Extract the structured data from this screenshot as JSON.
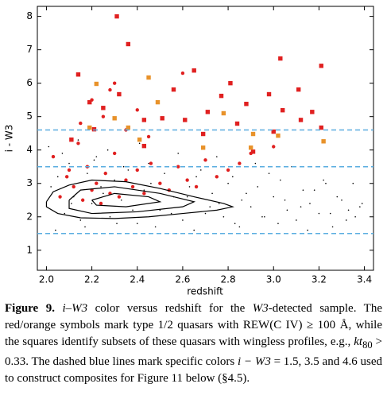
{
  "chart_data": {
    "type": "scatter",
    "xlabel": "redshift",
    "ylabel": "i - W3",
    "xlim": [
      1.96,
      3.44
    ],
    "ylim": [
      0.4,
      8.3
    ],
    "xticks": [
      {
        "value": 2,
        "label": "2.0"
      },
      2.2,
      2.4,
      2.6,
      2.8,
      {
        "value": 3,
        "label": "3.0"
      },
      3.2,
      3.4
    ],
    "yticks": [
      1,
      2,
      3,
      4,
      5,
      6,
      7,
      8
    ],
    "hlines": [
      1.5,
      3.5,
      4.6
    ],
    "hline_color": "#5aaee0",
    "series": [
      {
        "marker": "dot",
        "color": "#000000",
        "x": [
          2.02,
          2.05,
          2.08,
          2.1,
          2.12,
          2.15,
          2.18,
          2.2,
          2.22,
          2.25,
          2.28,
          2.3,
          2.33,
          2.36,
          2.4,
          2.43,
          2.46,
          2.5,
          2.53,
          2.56,
          2.6,
          2.63,
          2.66,
          2.7,
          2.73,
          2.76,
          2.8,
          2.83,
          2.86,
          2.9,
          2.93,
          2.96,
          3.0,
          3.03,
          3.06,
          3.1,
          3.13,
          3.16,
          3.2,
          3.23,
          3.26,
          3.3,
          3.33,
          3.36,
          3.39
        ],
        "values": [
          2.9,
          3.2,
          2.1,
          3.6,
          2.6,
          1.9,
          3.3,
          2.4,
          3.8,
          2.7,
          2.0,
          3.1,
          2.5,
          3.4,
          1.8,
          2.8,
          3.0,
          2.2,
          3.5,
          2.6,
          1.9,
          2.9,
          3.2,
          2.1,
          2.7,
          2.4,
          3.0,
          1.8,
          2.5,
          2.3,
          2.9,
          2.0,
          2.6,
          3.1,
          2.2,
          1.9,
          2.8,
          2.4,
          2.1,
          3.0,
          1.7,
          2.5,
          2.2,
          2.0,
          2.4
        ]
      },
      {
        "marker": "dot",
        "color": "#000000",
        "x": [
          2.01,
          2.04,
          2.07,
          2.11,
          2.14,
          2.17,
          2.21,
          2.24,
          2.27,
          2.31,
          2.34,
          2.38,
          2.41,
          2.45,
          2.48,
          2.52,
          2.55,
          2.58,
          2.62,
          2.65,
          2.68,
          2.72,
          2.75,
          2.78,
          2.82,
          2.85,
          2.88,
          2.92,
          2.95,
          2.98,
          3.02,
          3.05,
          3.08,
          3.12,
          3.15,
          3.18,
          3.22,
          3.25,
          3.28,
          3.32,
          3.35,
          3.38
        ],
        "values": [
          4.1,
          1.6,
          3.9,
          2.4,
          4.3,
          1.7,
          3.7,
          2.9,
          4.0,
          1.8,
          3.5,
          2.2,
          4.2,
          3.6,
          1.7,
          3.3,
          2.1,
          3.9,
          2.6,
          1.6,
          3.4,
          2.3,
          3.8,
          2.0,
          3.2,
          1.7,
          2.7,
          3.6,
          2.0,
          3.3,
          1.8,
          2.5,
          3.5,
          2.3,
          1.6,
          2.8,
          3.1,
          2.1,
          2.6,
          1.9,
          3.0,
          2.3
        ]
      },
      {
        "marker": "circle",
        "color": "#e02020",
        "x": [
          2.03,
          2.06,
          2.09,
          2.12,
          2.14,
          2.16,
          2.18,
          2.2,
          2.22,
          2.24,
          2.26,
          2.28,
          2.3,
          2.32,
          2.35,
          2.38,
          2.4,
          2.43,
          2.46,
          2.5,
          2.54,
          2.58,
          2.62,
          2.66,
          2.7,
          2.75,
          2.8,
          2.85,
          2.9,
          3.0,
          2.2,
          2.25,
          2.3,
          2.35,
          2.4,
          2.15,
          2.1,
          2.45,
          2.28,
          2.6
        ],
        "values": [
          3.8,
          2.6,
          3.2,
          2.9,
          4.2,
          2.5,
          3.5,
          2.8,
          3.0,
          2.4,
          3.3,
          2.7,
          3.9,
          2.6,
          3.1,
          2.9,
          3.4,
          2.7,
          3.6,
          3.0,
          2.8,
          3.5,
          3.1,
          2.9,
          3.7,
          3.2,
          3.4,
          3.6,
          3.9,
          4.1,
          5.5,
          5.0,
          6.0,
          4.6,
          5.2,
          4.8,
          3.4,
          4.4,
          5.8,
          6.3
        ]
      },
      {
        "marker": "square",
        "color": "#e02020",
        "x": [
          2.31,
          2.36,
          2.14,
          2.32,
          2.19,
          2.25,
          2.56,
          2.65,
          2.81,
          2.77,
          2.71,
          3.03,
          3.21,
          3.11,
          2.98,
          3.04,
          3.17,
          2.88,
          2.51,
          2.43,
          2.61,
          2.84,
          3.12,
          3.21,
          3.0,
          2.11,
          2.69,
          2.43,
          2.21,
          2.91
        ],
        "values": [
          8.0,
          7.17,
          6.26,
          5.67,
          5.43,
          5.26,
          5.81,
          6.38,
          6.0,
          5.62,
          5.14,
          6.74,
          6.52,
          5.81,
          5.67,
          5.19,
          5.14,
          5.38,
          4.95,
          4.9,
          4.9,
          4.79,
          4.9,
          4.67,
          4.55,
          4.31,
          4.48,
          4.12,
          4.62,
          3.95
        ]
      },
      {
        "marker": "square",
        "color": "#e8922a",
        "x": [
          2.22,
          2.45,
          2.49,
          2.3,
          2.36,
          2.19,
          2.91,
          2.78,
          3.02,
          2.9,
          3.22,
          2.41,
          2.69
        ],
        "values": [
          5.98,
          6.17,
          5.43,
          4.95,
          4.67,
          4.67,
          4.48,
          5.1,
          4.43,
          4.07,
          4.26,
          4.31,
          4.07
        ]
      }
    ],
    "contours": [
      {
        "color": "#000000",
        "x": [
          2.0,
          2.03,
          2.1,
          2.2,
          2.35,
          2.5,
          2.65,
          2.78,
          2.82,
          2.75,
          2.6,
          2.45,
          2.3,
          2.15,
          2.05,
          2.0,
          2.0
        ],
        "values": [
          2.45,
          2.75,
          2.95,
          3.1,
          3.05,
          2.85,
          2.6,
          2.4,
          2.3,
          2.2,
          2.1,
          2.0,
          1.95,
          1.97,
          2.1,
          2.3,
          2.45
        ]
      },
      {
        "color": "#000000",
        "x": [
          2.1,
          2.15,
          2.3,
          2.5,
          2.65,
          2.6,
          2.4,
          2.2,
          2.1,
          2.1
        ],
        "values": [
          2.5,
          2.8,
          2.9,
          2.7,
          2.45,
          2.3,
          2.15,
          2.1,
          2.25,
          2.5
        ]
      },
      {
        "color": "#000000",
        "x": [
          2.2,
          2.3,
          2.45,
          2.5,
          2.35,
          2.22,
          2.2
        ],
        "values": [
          2.5,
          2.7,
          2.6,
          2.45,
          2.3,
          2.35,
          2.5
        ]
      }
    ]
  },
  "caption": {
    "label": "Figure 9.",
    "parts": [
      "i–W3",
      " color versus redshift for the ",
      "W3",
      "-detected sample. The red/orange symbols mark type 1/2 quasars with REW(C IV) ≥ 100 Å, while the squares identify subsets of these quasars with wingless profiles, e.g., ",
      "kt",
      "80",
      " > 0.33. The dashed blue lines mark specific colors ",
      "i − W3",
      " = 1.5, 3.5 and 4.6 used to construct composites for Figure 11 below (§4.5)."
    ]
  }
}
